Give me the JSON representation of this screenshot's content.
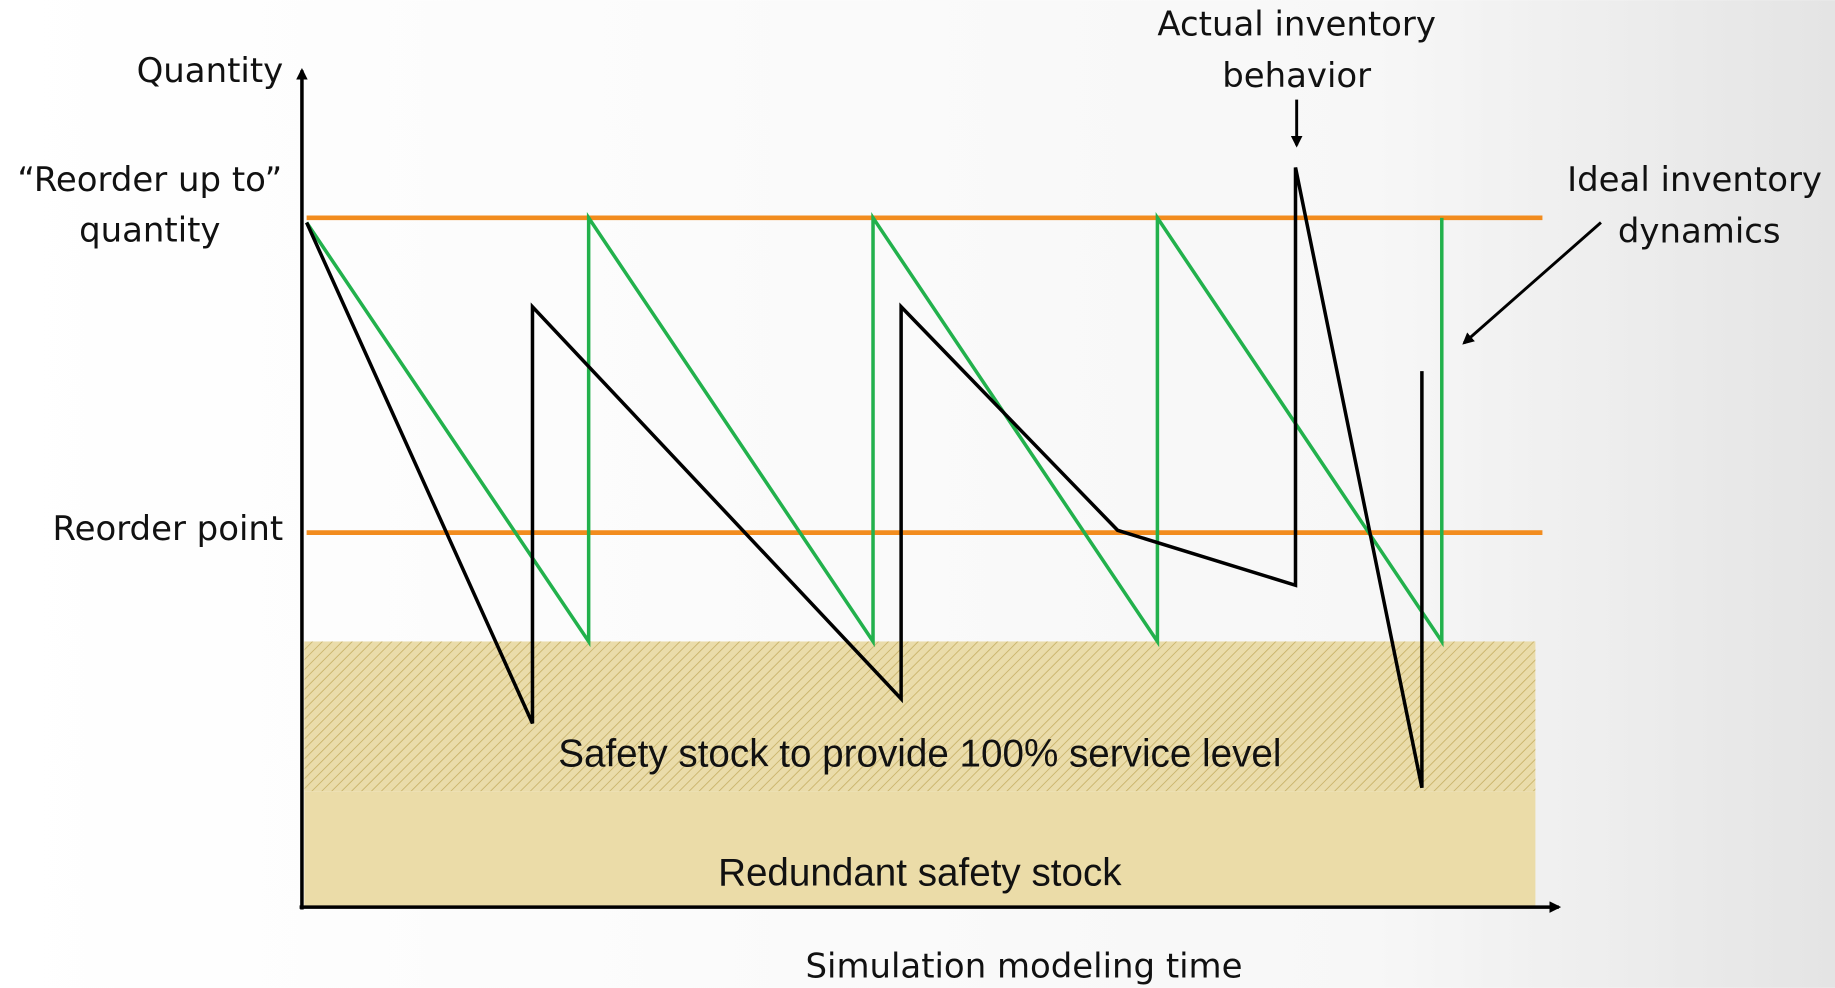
{
  "axes": {
    "y_label": "Quantity",
    "x_label": "Simulation modeling time"
  },
  "levels": {
    "reorder_up_to": [
      "“Reorder up to”",
      "quantity"
    ],
    "reorder_point": "Reorder point"
  },
  "annotations": {
    "actual": [
      "Actual inventory",
      "behavior"
    ],
    "ideal": [
      "Ideal inventory",
      "dynamics"
    ]
  },
  "regions": {
    "safety_stock": "Safety stock to provide 100% service level",
    "redundant": "Redundant safety stock"
  }
}
